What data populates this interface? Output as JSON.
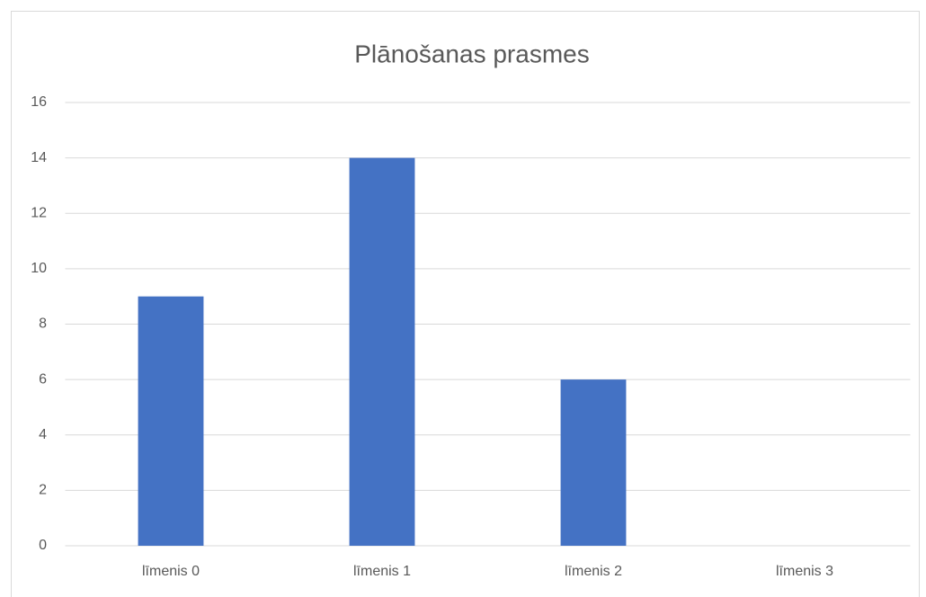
{
  "chart_data": {
    "type": "bar",
    "title": "Plānošanas prasmes",
    "categories": [
      "līmenis 0",
      "līmenis 1",
      "līmenis 2",
      "līmenis 3"
    ],
    "values": [
      9,
      14,
      6,
      0
    ],
    "color": "#4472c4",
    "ylim": [
      0,
      16
    ],
    "yticks": [
      0,
      2,
      4,
      6,
      8,
      10,
      12,
      14,
      16
    ],
    "grid": true
  }
}
